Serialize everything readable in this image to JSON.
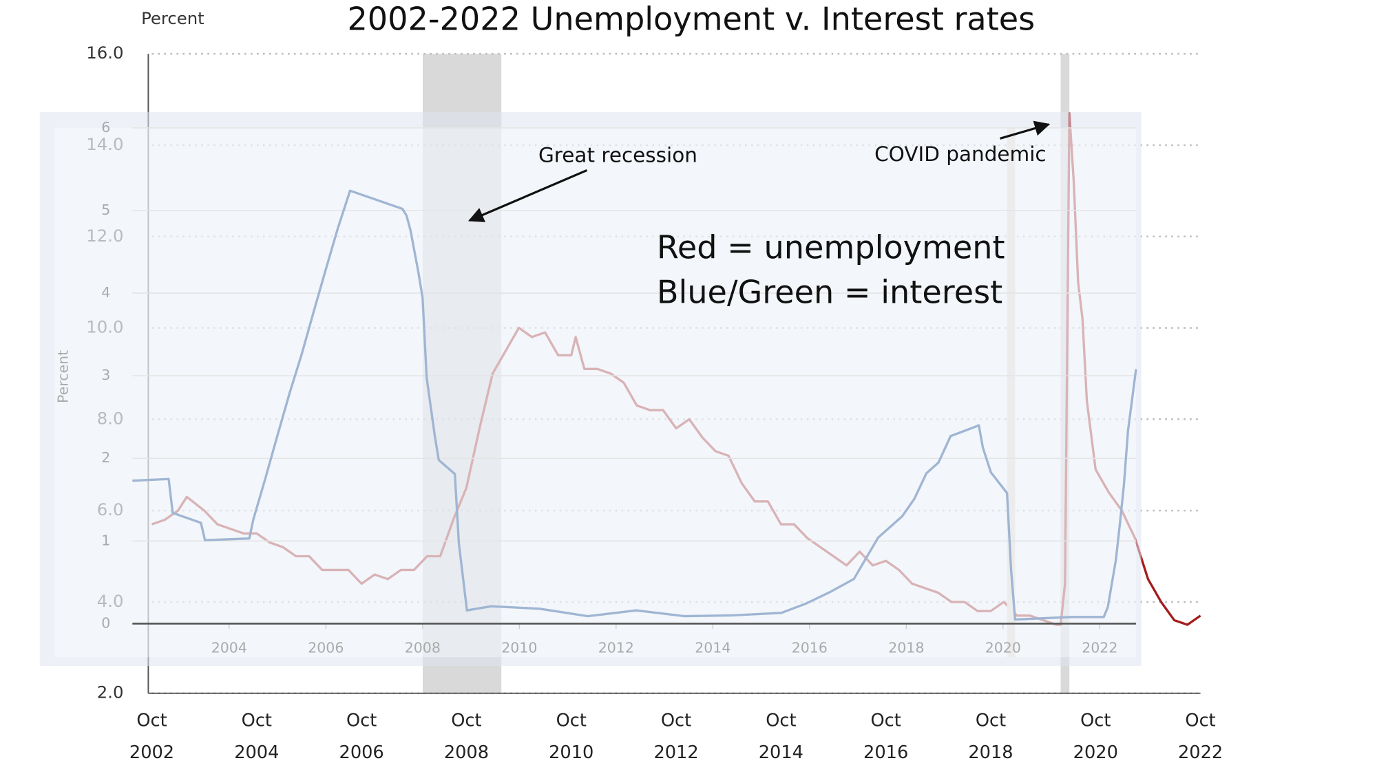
{
  "chart_data": [
    {
      "type": "line",
      "title": "2002-2022 Unemployment v. Interest rates",
      "y_label": "Percent",
      "annotations": [
        "Great recession",
        "COVID pandemic",
        "Red = unemployment",
        "Blue/Green = interest"
      ],
      "xlim": [
        "2002-10",
        "2022-10"
      ],
      "xticks": [
        {
          "value": "2002-10",
          "label": [
            "Oct",
            "2002"
          ]
        },
        {
          "value": "2004-10",
          "label": [
            "Oct",
            "2004"
          ]
        },
        {
          "value": "2006-10",
          "label": [
            "Oct",
            "2006"
          ]
        },
        {
          "value": "2008-10",
          "label": [
            "Oct",
            "2008"
          ]
        },
        {
          "value": "2010-10",
          "label": [
            "Oct",
            "2010"
          ]
        },
        {
          "value": "2012-10",
          "label": [
            "Oct",
            "2012"
          ]
        },
        {
          "value": "2014-10",
          "label": [
            "Oct",
            "2014"
          ]
        },
        {
          "value": "2016-10",
          "label": [
            "Oct",
            "2016"
          ]
        },
        {
          "value": "2018-10",
          "label": [
            "Oct",
            "2018"
          ]
        },
        {
          "value": "2020-10",
          "label": [
            "Oct",
            "2020"
          ]
        },
        {
          "value": "2022-10",
          "label": [
            "Oct",
            "2022"
          ]
        }
      ],
      "ylim": [
        2,
        16
      ],
      "yticks": [
        {
          "value": 2,
          "label": "2.0"
        },
        {
          "value": 4,
          "label": "4.0"
        },
        {
          "value": 6,
          "label": "6.0"
        },
        {
          "value": 8,
          "label": "8.0"
        },
        {
          "value": 10,
          "label": "10.0"
        },
        {
          "value": 12,
          "label": "12.0"
        },
        {
          "value": 14,
          "label": "14.0"
        },
        {
          "value": 16,
          "label": "16.0"
        }
      ],
      "grid": true,
      "shaded": [
        [
          "2007-12",
          "2009-06"
        ],
        [
          "2020-02",
          "2020-04"
        ]
      ],
      "x": [
        "2002-10",
        "2003-01",
        "2003-04",
        "2003-06",
        "2003-10",
        "2004-01",
        "2004-04",
        "2004-07",
        "2004-10",
        "2005-01",
        "2005-04",
        "2005-07",
        "2005-10",
        "2006-01",
        "2006-04",
        "2006-07",
        "2006-10",
        "2007-01",
        "2007-04",
        "2007-07",
        "2007-10",
        "2008-01",
        "2008-04",
        "2008-07",
        "2008-10",
        "2009-01",
        "2009-04",
        "2009-07",
        "2009-10",
        "2010-01",
        "2010-04",
        "2010-07",
        "2010-10",
        "2010-11",
        "2011-01",
        "2011-04",
        "2011-07",
        "2011-10",
        "2012-01",
        "2012-04",
        "2012-07",
        "2012-10",
        "2013-01",
        "2013-04",
        "2013-07",
        "2013-10",
        "2014-01",
        "2014-04",
        "2014-07",
        "2014-10",
        "2015-01",
        "2015-04",
        "2015-07",
        "2015-10",
        "2016-01",
        "2016-04",
        "2016-07",
        "2016-10",
        "2017-01",
        "2017-04",
        "2017-07",
        "2017-10",
        "2018-01",
        "2018-04",
        "2018-07",
        "2018-10",
        "2019-01",
        "2019-04",
        "2019-07",
        "2019-10",
        "2020-01",
        "2020-02",
        "2020-03",
        "2020-04",
        "2020-05",
        "2020-06",
        "2020-07",
        "2020-08",
        "2020-10",
        "2021-01",
        "2021-04",
        "2021-07",
        "2021-10",
        "2022-01",
        "2022-04",
        "2022-07",
        "2022-10"
      ],
      "series": [
        {
          "color": "#a41c1c",
          "values": [
            5.7,
            5.8,
            6.0,
            6.3,
            6.0,
            5.7,
            5.6,
            5.5,
            5.5,
            5.3,
            5.2,
            5.0,
            5.0,
            4.7,
            4.7,
            4.7,
            4.4,
            4.6,
            4.5,
            4.7,
            4.7,
            5.0,
            5.0,
            5.8,
            6.5,
            7.8,
            9.0,
            9.5,
            10.0,
            9.8,
            9.9,
            9.4,
            9.4,
            9.8,
            9.1,
            9.1,
            9.0,
            8.8,
            8.3,
            8.2,
            8.2,
            7.8,
            8.0,
            7.6,
            7.3,
            7.2,
            6.6,
            6.2,
            6.2,
            5.7,
            5.7,
            5.4,
            5.2,
            5.0,
            4.8,
            5.1,
            4.8,
            4.9,
            4.7,
            4.4,
            4.3,
            4.2,
            4.0,
            4.0,
            3.8,
            3.8,
            4.0,
            3.7,
            3.7,
            3.6,
            3.5,
            3.5,
            4.4,
            14.7,
            13.2,
            11.0,
            10.2,
            8.4,
            6.9,
            6.4,
            6.0,
            5.4,
            4.5,
            4.0,
            3.6,
            3.5,
            3.7
          ]
        }
      ]
    },
    {
      "type": "line",
      "y_label": "Percent",
      "xlim": [
        "2002-01",
        "2022-10"
      ],
      "xticks": [
        2004,
        2006,
        2008,
        2010,
        2012,
        2014,
        2016,
        2018,
        2020,
        2022
      ],
      "ylim": [
        0,
        6
      ],
      "yticks": [
        0,
        1,
        2,
        3,
        4,
        5,
        6
      ],
      "grid": true,
      "shaded": [
        [
          "2020-02",
          "2020-04"
        ]
      ],
      "x": [
        "2002-01",
        "2002-10",
        "2002-11",
        "2003-06",
        "2003-07",
        "2004-06",
        "2004-07",
        "2004-10",
        "2005-01",
        "2005-04",
        "2005-07",
        "2005-10",
        "2006-01",
        "2006-04",
        "2006-07",
        "2007-08",
        "2007-09",
        "2007-10",
        "2007-12",
        "2008-01",
        "2008-02",
        "2008-04",
        "2008-05",
        "2008-09",
        "2008-10",
        "2008-12",
        "2009-06",
        "2010-06",
        "2011-06",
        "2012-06",
        "2013-06",
        "2014-06",
        "2015-06",
        "2015-12",
        "2016-06",
        "2016-12",
        "2017-03",
        "2017-06",
        "2017-12",
        "2018-03",
        "2018-06",
        "2018-09",
        "2018-12",
        "2019-06",
        "2019-07",
        "2019-08",
        "2019-10",
        "2020-02",
        "2020-03",
        "2020-04",
        "2021-06",
        "2022-02",
        "2022-03",
        "2022-05",
        "2022-06",
        "2022-07",
        "2022-08",
        "2022-10"
      ],
      "series": [
        {
          "color": "#9fb5d3",
          "values": [
            1.73,
            1.75,
            1.34,
            1.22,
            1.01,
            1.03,
            1.26,
            1.76,
            2.28,
            2.79,
            3.26,
            3.78,
            4.29,
            4.79,
            5.24,
            5.02,
            4.94,
            4.76,
            4.24,
            3.94,
            2.98,
            2.28,
            1.98,
            1.81,
            0.97,
            0.16,
            0.21,
            0.18,
            0.09,
            0.16,
            0.09,
            0.1,
            0.13,
            0.24,
            0.38,
            0.54,
            0.79,
            1.04,
            1.3,
            1.51,
            1.82,
            1.95,
            2.27,
            2.38,
            2.4,
            2.13,
            1.83,
            1.58,
            0.65,
            0.05,
            0.08,
            0.08,
            0.2,
            0.77,
            1.21,
            1.68,
            2.33,
            3.08
          ]
        }
      ]
    }
  ]
}
